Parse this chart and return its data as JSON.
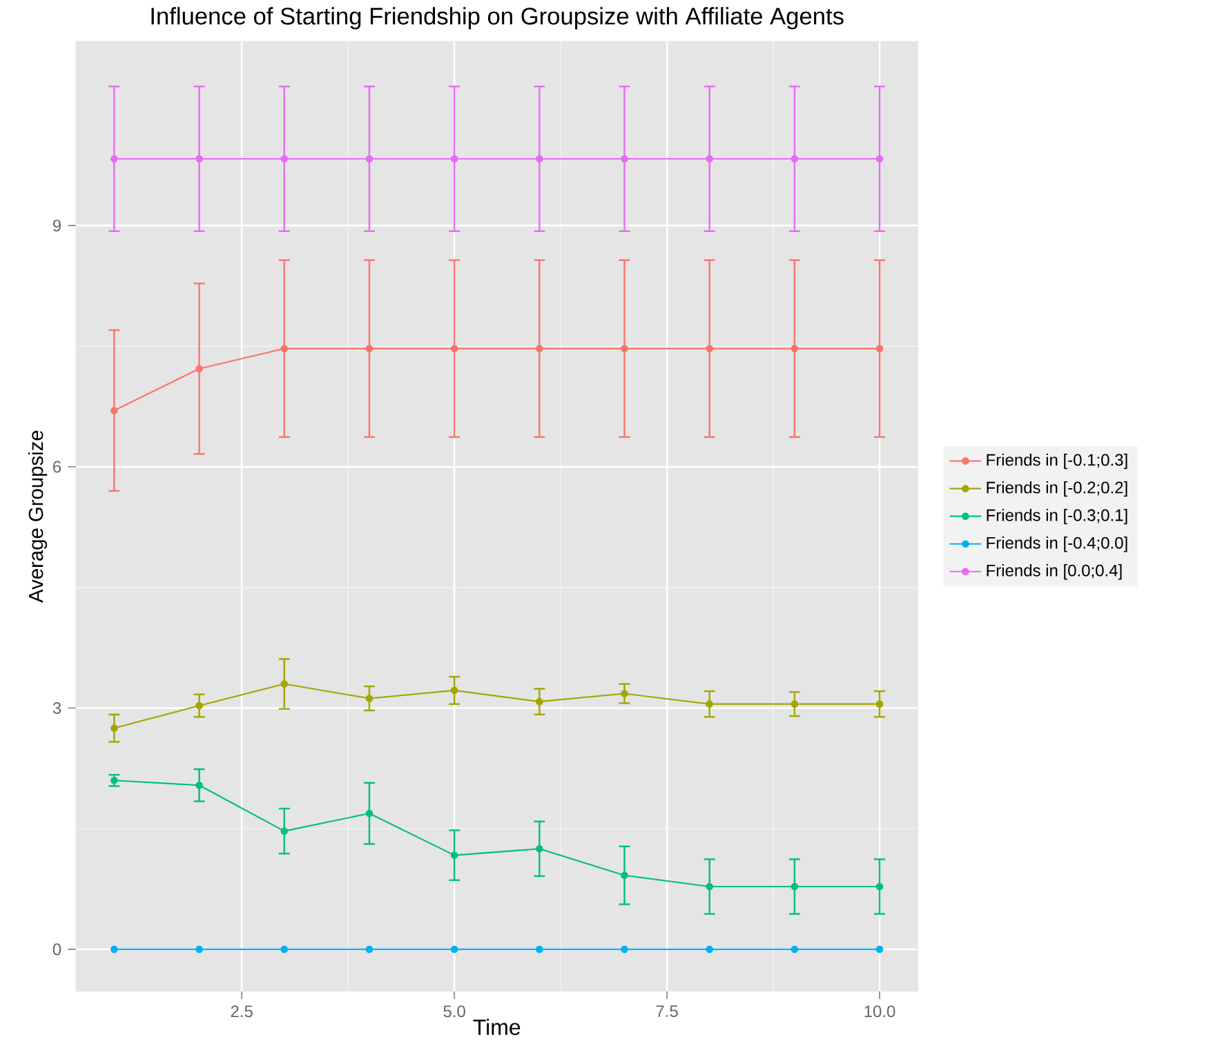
{
  "chart_data": {
    "type": "line",
    "title": "Influence of Starting Friendship on Groupsize with Affiliate Agents",
    "xlabel": "Time",
    "ylabel": "Average Groupsize",
    "x": [
      1,
      2,
      3,
      4,
      5,
      6,
      7,
      8,
      9,
      10
    ],
    "series": [
      {
        "name": "Friends in [-0.1;0.3]",
        "color": "#f8766d",
        "values": [
          6.7,
          7.22,
          7.47,
          7.47,
          7.47,
          7.47,
          7.47,
          7.47,
          7.47,
          7.47
        ],
        "errors": [
          1.0,
          1.06,
          1.1,
          1.1,
          1.1,
          1.1,
          1.1,
          1.1,
          1.1,
          1.1
        ]
      },
      {
        "name": "Friends in [-0.2;0.2]",
        "color": "#a3a500",
        "values": [
          2.75,
          3.03,
          3.3,
          3.12,
          3.22,
          3.08,
          3.18,
          3.05,
          3.05,
          3.05
        ],
        "errors": [
          0.17,
          0.14,
          0.31,
          0.15,
          0.17,
          0.16,
          0.12,
          0.16,
          0.15,
          0.16
        ]
      },
      {
        "name": "Friends in [-0.3;0.1]",
        "color": "#00bf7d",
        "values": [
          2.1,
          2.04,
          1.47,
          1.69,
          1.17,
          1.25,
          0.92,
          0.78,
          0.78,
          0.78
        ],
        "errors": [
          0.07,
          0.2,
          0.28,
          0.38,
          0.31,
          0.34,
          0.36,
          0.34,
          0.34,
          0.34
        ]
      },
      {
        "name": "Friends in [-0.4;0.0]",
        "color": "#00b0f6",
        "values": [
          0,
          0,
          0,
          0,
          0,
          0,
          0,
          0,
          0,
          0
        ]
      },
      {
        "name": "Friends in [0.0;0.4]",
        "color": "#e76bf3",
        "values": [
          9.83,
          9.83,
          9.83,
          9.83,
          9.83,
          9.83,
          9.83,
          9.83,
          9.83,
          9.83
        ],
        "errors": [
          0.9,
          0.9,
          0.9,
          0.9,
          0.9,
          0.9,
          0.9,
          0.9,
          0.9,
          0.9
        ]
      }
    ],
    "xlim": [
      0.55,
      10.45
    ],
    "ylim": [
      -0.52,
      11.29
    ],
    "xticks": [
      2.5,
      {
        "value": 5,
        "label": "5.0"
      },
      7.5,
      {
        "value": 10,
        "label": "10.0"
      }
    ],
    "yticks": [
      0,
      3,
      6,
      9
    ],
    "grid": true,
    "legend": "right",
    "marker": "circle",
    "line_style": "solid"
  }
}
